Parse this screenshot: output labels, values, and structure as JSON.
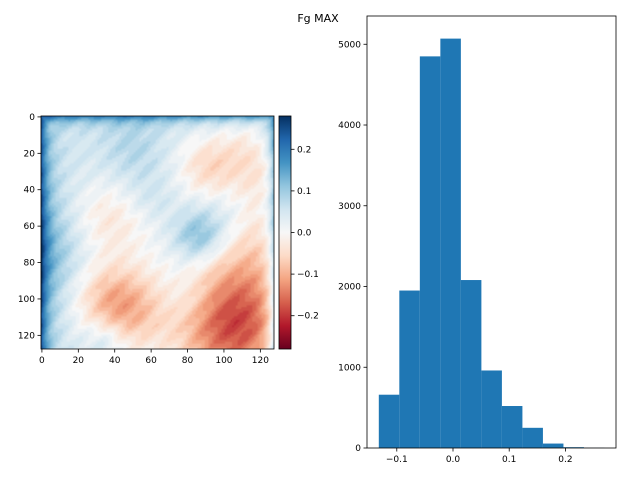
{
  "suptitle": "Fg MAX",
  "chart_data": [
    {
      "type": "heatmap",
      "title": "",
      "xlabel": "",
      "ylabel": "",
      "shape": [
        128,
        128
      ],
      "x_range": [
        0,
        127
      ],
      "y_range": [
        0,
        127
      ],
      "x_ticks": [
        0,
        20,
        40,
        60,
        80,
        100,
        120
      ],
      "y_ticks": [
        0,
        20,
        40,
        60,
        80,
        100,
        120
      ],
      "x_tick_labels": [
        "0",
        "20",
        "40",
        "60",
        "80",
        "100",
        "120"
      ],
      "y_tick_labels": [
        "0",
        "20",
        "40",
        "60",
        "80",
        "100",
        "120"
      ],
      "colormap": "RdBu",
      "colorbar": {
        "vmin": -0.28,
        "vmax": 0.28,
        "ticks": [
          0.2,
          0.1,
          0.0,
          -0.1,
          -0.2
        ],
        "tick_labels": [
          "0.2",
          "0.1",
          "0.0",
          "−0.1",
          "−0.2"
        ]
      }
    },
    {
      "type": "bar",
      "subtype": "histogram",
      "title": "",
      "xlabel": "",
      "ylabel": "",
      "bin_edges": [
        -0.132,
        -0.0955,
        -0.059,
        -0.0225,
        0.014,
        0.0505,
        0.087,
        0.1235,
        0.16,
        0.1965,
        0.233,
        0.2695
      ],
      "values": [
        660,
        1950,
        4850,
        5070,
        2080,
        960,
        520,
        250,
        55,
        10,
        2
      ],
      "xlim": [
        -0.153,
        0.29
      ],
      "ylim": [
        0,
        5350
      ],
      "x_ticks": [
        -0.1,
        0.0,
        0.1,
        0.2
      ],
      "x_tick_labels": [
        "−0.1",
        "0.0",
        "0.1",
        "0.2"
      ],
      "y_ticks": [
        0,
        1000,
        2000,
        3000,
        4000,
        5000
      ],
      "y_tick_labels": [
        "0",
        "1000",
        "2000",
        "3000",
        "4000",
        "5000"
      ],
      "bar_color": "#1f77b4"
    }
  ]
}
